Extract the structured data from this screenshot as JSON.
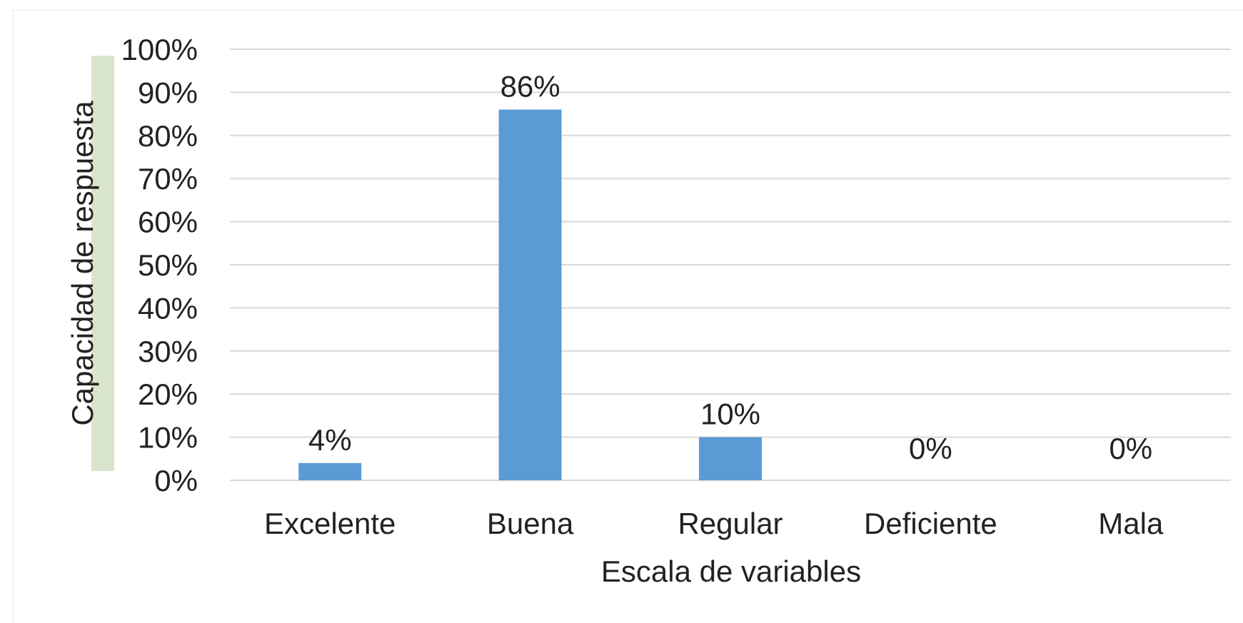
{
  "chart_data": {
    "type": "bar",
    "categories": [
      "Excelente",
      "Buena",
      "Regular",
      "Deficiente",
      "Mala"
    ],
    "values": [
      4,
      86,
      10,
      0,
      0
    ],
    "data_labels": [
      "4%",
      "86%",
      "10%",
      "0%",
      "0%"
    ],
    "xlabel": "Escala de variables",
    "ylabel": "Capacidad de respuesta",
    "ylim": [
      0,
      100
    ],
    "yticks": [
      "0%",
      "10%",
      "20%",
      "30%",
      "40%",
      "50%",
      "60%",
      "70%",
      "80%",
      "90%",
      "100%"
    ],
    "grid": true,
    "colors": {
      "bar": "#5b9bd5",
      "grid": "#d9d9d9",
      "ylabel_highlight": "#d9e4cd"
    }
  }
}
